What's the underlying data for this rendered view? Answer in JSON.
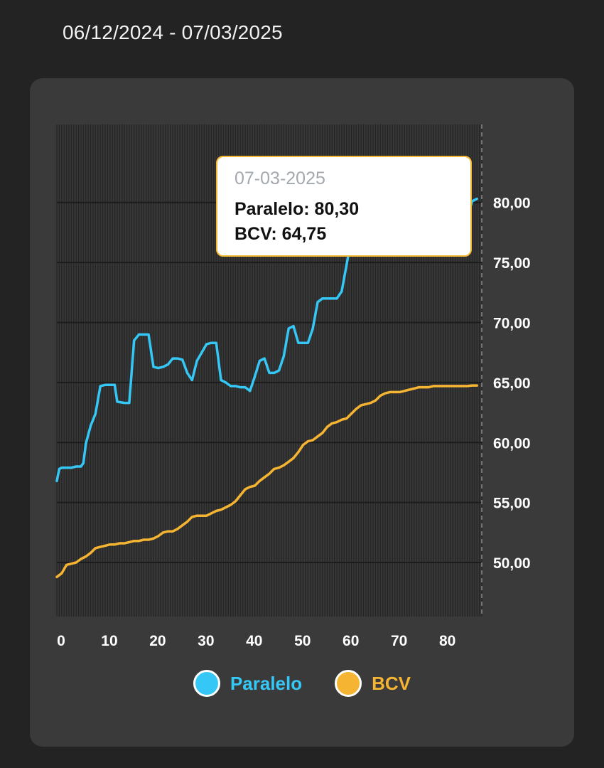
{
  "header": {
    "date_range": "06/12/2024 - 07/03/2025"
  },
  "tooltip": {
    "date": "07-03-2025",
    "paralelo_text": "Paralelo: 80,30",
    "bcv_text": "BCV: 64,75"
  },
  "colors": {
    "paralelo": "#35c7f5",
    "bcv": "#f5b431",
    "grid": "#1e1e1e"
  },
  "chart_data": {
    "type": "line",
    "title": "",
    "xlabel": "",
    "ylabel": "",
    "xlim": [
      0,
      88
    ],
    "ylim": [
      45.5,
      86.5
    ],
    "x_ticks": [
      0,
      10,
      20,
      30,
      40,
      50,
      60,
      70,
      80
    ],
    "y_ticks": [
      50,
      55,
      60,
      65,
      70,
      75,
      80
    ],
    "y_tick_labels": [
      "50,00",
      "55,00",
      "60,00",
      "65,00",
      "70,00",
      "75,00",
      "80,00"
    ],
    "y_axis_side": "right",
    "grid": true,
    "legend_position": "bottom",
    "series": [
      {
        "name": "Paralelo",
        "color": "#35c7f5",
        "points": [
          [
            0,
            56.8
          ],
          [
            0.5,
            57.8
          ],
          [
            1,
            57.9
          ],
          [
            2,
            57.9
          ],
          [
            3,
            57.9
          ],
          [
            4,
            58
          ],
          [
            5,
            58
          ],
          [
            5.5,
            58.3
          ],
          [
            6,
            59.9
          ],
          [
            7,
            61.4
          ],
          [
            8,
            62.4
          ],
          [
            9,
            64.7
          ],
          [
            10,
            64.8
          ],
          [
            11,
            64.8
          ],
          [
            12,
            64.8
          ],
          [
            12.5,
            63.4
          ],
          [
            14,
            63.3
          ],
          [
            15,
            63.3
          ],
          [
            16,
            68.5
          ],
          [
            17,
            69
          ],
          [
            18,
            69
          ],
          [
            19,
            69
          ],
          [
            20,
            66.3
          ],
          [
            21,
            66.2
          ],
          [
            22,
            66.3
          ],
          [
            23,
            66.5
          ],
          [
            24,
            67
          ],
          [
            25,
            67
          ],
          [
            26,
            66.9
          ],
          [
            27,
            65.8
          ],
          [
            28,
            65.2
          ],
          [
            29,
            66.8
          ],
          [
            30,
            67.5
          ],
          [
            31,
            68.2
          ],
          [
            32,
            68.3
          ],
          [
            33,
            68.3
          ],
          [
            34,
            65.2
          ],
          [
            35,
            65
          ],
          [
            36,
            64.7
          ],
          [
            37,
            64.7
          ],
          [
            38,
            64.6
          ],
          [
            39,
            64.6
          ],
          [
            40,
            64.3
          ],
          [
            41,
            65.5
          ],
          [
            42,
            66.8
          ],
          [
            43,
            67
          ],
          [
            44,
            65.8
          ],
          [
            45,
            65.8
          ],
          [
            46,
            66
          ],
          [
            47,
            67.2
          ],
          [
            48,
            69.5
          ],
          [
            49,
            69.7
          ],
          [
            50,
            68.3
          ],
          [
            51,
            68.3
          ],
          [
            52,
            68.3
          ],
          [
            53,
            69.5
          ],
          [
            54,
            71.7
          ],
          [
            55,
            72
          ],
          [
            56,
            72
          ],
          [
            57,
            72
          ],
          [
            58,
            72
          ],
          [
            59,
            72.6
          ],
          [
            60,
            74.8
          ],
          [
            61,
            77
          ],
          [
            62,
            78
          ],
          [
            63,
            79
          ],
          [
            64,
            79.5
          ],
          [
            65,
            79.5
          ],
          [
            66,
            79.4
          ],
          [
            67,
            79.5
          ],
          [
            68,
            79.6
          ],
          [
            69,
            79.5
          ],
          [
            70,
            79.5
          ],
          [
            71,
            79.5
          ],
          [
            72,
            79.6
          ],
          [
            73,
            79.5
          ],
          [
            74,
            79.6
          ],
          [
            75,
            79.7
          ],
          [
            76,
            79.8
          ],
          [
            77,
            79.6
          ],
          [
            78,
            79.6
          ],
          [
            79,
            79.7
          ],
          [
            80,
            79.8
          ],
          [
            81,
            79.6
          ],
          [
            82,
            79.5
          ],
          [
            83,
            79.3
          ],
          [
            84,
            78.2
          ],
          [
            85,
            78.8
          ],
          [
            86,
            80.1
          ],
          [
            87,
            80.3
          ]
        ]
      },
      {
        "name": "BCV",
        "color": "#f5b431",
        "points": [
          [
            0,
            48.8
          ],
          [
            1,
            49.1
          ],
          [
            2,
            49.8
          ],
          [
            3,
            49.9
          ],
          [
            4,
            50
          ],
          [
            5,
            50.3
          ],
          [
            6,
            50.5
          ],
          [
            7,
            50.8
          ],
          [
            8,
            51.2
          ],
          [
            9,
            51.3
          ],
          [
            10,
            51.4
          ],
          [
            11,
            51.5
          ],
          [
            12,
            51.5
          ],
          [
            13,
            51.6
          ],
          [
            14,
            51.6
          ],
          [
            15,
            51.7
          ],
          [
            16,
            51.8
          ],
          [
            17,
            51.8
          ],
          [
            18,
            51.9
          ],
          [
            19,
            51.9
          ],
          [
            20,
            52
          ],
          [
            21,
            52.2
          ],
          [
            22,
            52.5
          ],
          [
            23,
            52.6
          ],
          [
            24,
            52.6
          ],
          [
            25,
            52.8
          ],
          [
            26,
            53.1
          ],
          [
            27,
            53.4
          ],
          [
            28,
            53.8
          ],
          [
            29,
            53.9
          ],
          [
            30,
            53.9
          ],
          [
            31,
            53.9
          ],
          [
            32,
            54.1
          ],
          [
            33,
            54.3
          ],
          [
            34,
            54.4
          ],
          [
            35,
            54.6
          ],
          [
            36,
            54.8
          ],
          [
            37,
            55.1
          ],
          [
            38,
            55.6
          ],
          [
            39,
            56.1
          ],
          [
            40,
            56.3
          ],
          [
            41,
            56.4
          ],
          [
            42,
            56.8
          ],
          [
            43,
            57.1
          ],
          [
            44,
            57.4
          ],
          [
            45,
            57.8
          ],
          [
            46,
            57.9
          ],
          [
            47,
            58.1
          ],
          [
            48,
            58.4
          ],
          [
            49,
            58.7
          ],
          [
            50,
            59.2
          ],
          [
            51,
            59.8
          ],
          [
            52,
            60.1
          ],
          [
            53,
            60.2
          ],
          [
            54,
            60.5
          ],
          [
            55,
            60.8
          ],
          [
            56,
            61.3
          ],
          [
            57,
            61.6
          ],
          [
            58,
            61.7
          ],
          [
            59,
            61.9
          ],
          [
            60,
            62
          ],
          [
            61,
            62.4
          ],
          [
            62,
            62.8
          ],
          [
            63,
            63.1
          ],
          [
            64,
            63.2
          ],
          [
            65,
            63.3
          ],
          [
            66,
            63.5
          ],
          [
            67,
            63.9
          ],
          [
            68,
            64.1
          ],
          [
            69,
            64.2
          ],
          [
            70,
            64.2
          ],
          [
            71,
            64.2
          ],
          [
            72,
            64.3
          ],
          [
            73,
            64.4
          ],
          [
            74,
            64.5
          ],
          [
            75,
            64.6
          ],
          [
            76,
            64.6
          ],
          [
            77,
            64.6
          ],
          [
            78,
            64.7
          ],
          [
            79,
            64.7
          ],
          [
            80,
            64.7
          ],
          [
            81,
            64.7
          ],
          [
            82,
            64.7
          ],
          [
            83,
            64.7
          ],
          [
            84,
            64.7
          ],
          [
            85,
            64.7
          ],
          [
            86,
            64.75
          ],
          [
            87,
            64.75
          ]
        ]
      }
    ]
  }
}
